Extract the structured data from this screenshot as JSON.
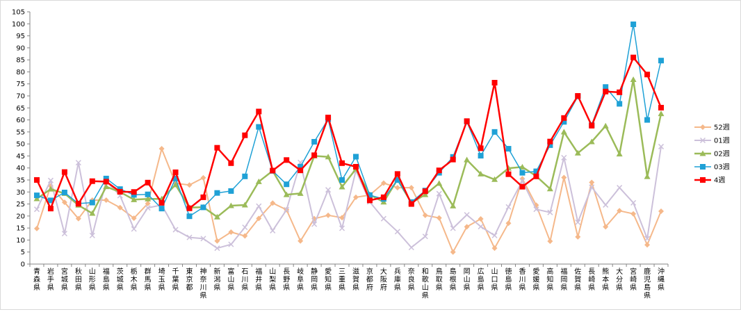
{
  "chart_data": {
    "type": "line",
    "title": "",
    "xlabel": "",
    "ylabel": "",
    "ylim": [
      0,
      105
    ],
    "yticks": [
      0,
      5,
      10,
      15,
      20,
      25,
      30,
      35,
      40,
      45,
      50,
      55,
      60,
      65,
      70,
      75,
      80,
      85,
      90,
      95,
      100,
      105
    ],
    "grid": false,
    "legend_position": "right",
    "categories": [
      "青森県",
      "岩手県",
      "宮城県",
      "秋田県",
      "山形県",
      "福島県",
      "茨城県",
      "栃木県",
      "群馬県",
      "埼玉県",
      "千葉県",
      "東京都",
      "神奈川県",
      "新潟県",
      "富山県",
      "石川県",
      "福井県",
      "山梨県",
      "長野県",
      "岐阜県",
      "静岡県",
      "愛知県",
      "三重県",
      "滋賀県",
      "京都府",
      "大阪府",
      "兵庫県",
      "奈良県",
      "和歌山県",
      "鳥取県",
      "島根県",
      "岡山県",
      "広島県",
      "山口県",
      "徳島県",
      "香川県",
      "愛媛県",
      "高知県",
      "福岡県",
      "佐賀県",
      "長崎県",
      "熊本県",
      "大分県",
      "宮崎県",
      "鹿児島県",
      "沖縄県"
    ],
    "series": [
      {
        "name": "52週",
        "color": "#f5b88a",
        "marker": "diamond",
        "width": 2,
        "values": [
          14.8,
          32.5,
          25.7,
          18.9,
          26.6,
          26.6,
          23.5,
          19.1,
          25.2,
          48.0,
          33.6,
          32.9,
          35.9,
          9.6,
          13.3,
          11.7,
          19.0,
          25.4,
          22.6,
          9.6,
          18.9,
          20.3,
          19.3,
          27.8,
          28.7,
          33.7,
          31.8,
          31.8,
          20.3,
          19.2,
          5.0,
          15.5,
          18.8,
          6.6,
          17.0,
          35.5,
          24.5,
          9.5,
          36.0,
          11.3,
          34.0,
          15.5,
          22.2,
          20.9,
          8.0,
          22.0
        ]
      },
      {
        "name": "01週",
        "color": "#ccc0da",
        "marker": "cross",
        "width": 2,
        "values": [
          22.8,
          34.8,
          12.7,
          42.2,
          11.9,
          34.6,
          28.5,
          14.6,
          23.4,
          24.6,
          14.3,
          11.1,
          10.6,
          6.6,
          8.2,
          15.3,
          24.1,
          13.9,
          22.6,
          42.3,
          16.6,
          30.9,
          14.9,
          38.9,
          25.9,
          18.9,
          13.5,
          6.9,
          11.5,
          29.3,
          14.9,
          20.5,
          15.6,
          11.9,
          23.8,
          34.6,
          22.8,
          21.5,
          44.3,
          17.4,
          32.0,
          24.6,
          31.8,
          25.5,
          10.6,
          48.9
        ]
      },
      {
        "name": "02週",
        "color": "#9bbb59",
        "marker": "triangle",
        "width": 2.5,
        "values": [
          27.2,
          31.2,
          29.4,
          24.5,
          21.1,
          32.2,
          30.0,
          26.8,
          27.1,
          27.1,
          33.0,
          23.5,
          23.7,
          19.6,
          24.3,
          24.6,
          34.3,
          38.8,
          28.9,
          29.4,
          45.0,
          44.6,
          32.1,
          39.6,
          28.9,
          25.8,
          35.2,
          25.5,
          28.9,
          33.6,
          24.2,
          43.4,
          37.5,
          35.2,
          39.9,
          40.4,
          36.6,
          31.3,
          55.0,
          46.2,
          50.9,
          57.5,
          45.8,
          76.8,
          36.4,
          62.6
        ]
      },
      {
        "name": "03週",
        "color": "#1fa1d6",
        "marker": "square",
        "width": 1.5,
        "values": [
          28.6,
          26.5,
          29.8,
          25.2,
          25.6,
          35.6,
          31.2,
          28.8,
          29.0,
          23.1,
          35.6,
          19.9,
          23.6,
          29.6,
          30.4,
          36.5,
          57.1,
          38.8,
          33.2,
          40.5,
          50.9,
          60.3,
          35.0,
          44.7,
          28.7,
          27.1,
          35.0,
          25.8,
          30.6,
          38.0,
          44.6,
          59.3,
          45.1,
          55.0,
          48.0,
          38.0,
          38.6,
          49.5,
          59.2,
          69.8,
          57.9,
          73.7,
          66.7,
          99.8,
          60.0,
          84.7
        ]
      },
      {
        "name": "4週",
        "color": "#ff0000",
        "marker": "square",
        "width": 2.5,
        "values": [
          35.0,
          23.1,
          38.3,
          25.1,
          34.5,
          34.3,
          30.1,
          30.0,
          33.9,
          25.5,
          38.2,
          23.2,
          27.8,
          48.4,
          42.0,
          53.6,
          63.5,
          38.9,
          43.3,
          39.0,
          45.3,
          61.0,
          42.0,
          40.5,
          26.5,
          27.8,
          37.5,
          25.0,
          30.3,
          39.0,
          43.5,
          59.5,
          48.2,
          75.5,
          37.4,
          32.2,
          36.5,
          51.0,
          60.8,
          70.0,
          57.6,
          71.8,
          71.5,
          86.0,
          78.9,
          65.1
        ]
      }
    ]
  }
}
